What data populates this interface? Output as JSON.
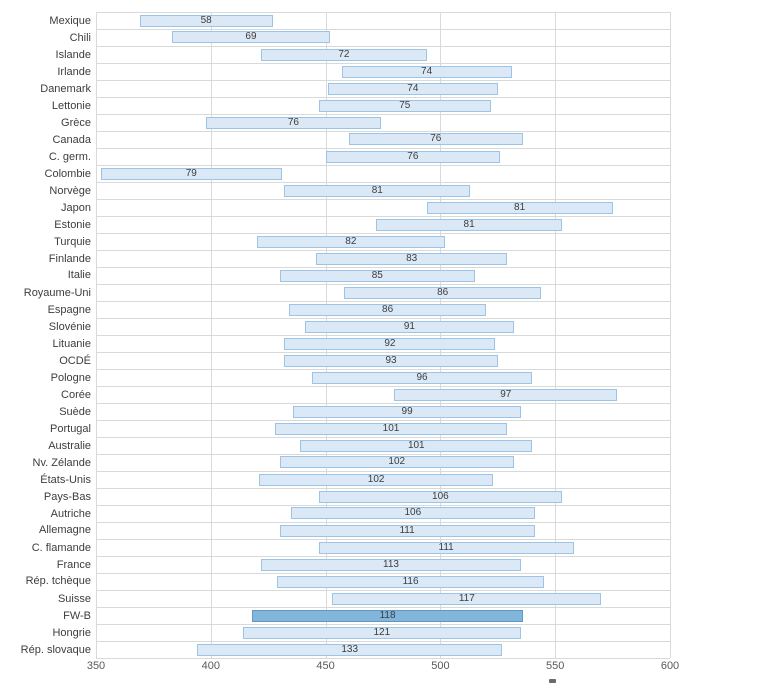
{
  "colors": {
    "bar_fill": "#dbe8f6",
    "bar_border": "#9dc3e6",
    "highlight_fill": "#82b5da",
    "highlight_border": "#5f97c5",
    "gridline": "#d9d9d9",
    "value_text": "#3d3d3d",
    "category_text": "#3d3d3d",
    "tick_text": "#595959"
  },
  "chart_data": {
    "type": "bar",
    "subtype": "floating-range-bars",
    "orientation": "horizontal",
    "title": "",
    "xlabel": "",
    "ylabel": "",
    "xlim": [
      350,
      600
    ],
    "x_ticks": [
      "350",
      "400",
      "450",
      "500",
      "550",
      "600"
    ],
    "grid": true,
    "legend": false,
    "highlighted_category": "FW-B",
    "value_label_meaning": "bar width (end minus start)",
    "bars": [
      {
        "category": "Mexique",
        "start": 369,
        "end": 427,
        "value": "58",
        "highlight": false
      },
      {
        "category": "Chili",
        "start": 383,
        "end": 452,
        "value": "69",
        "highlight": false
      },
      {
        "category": "Islande",
        "start": 422,
        "end": 494,
        "value": "72",
        "highlight": false
      },
      {
        "category": "Irlande",
        "start": 457,
        "end": 531,
        "value": "74",
        "highlight": false
      },
      {
        "category": "Danemark",
        "start": 451,
        "end": 525,
        "value": "74",
        "highlight": false
      },
      {
        "category": "Lettonie",
        "start": 447,
        "end": 522,
        "value": "75",
        "highlight": false
      },
      {
        "category": "Grèce",
        "start": 398,
        "end": 474,
        "value": "76",
        "highlight": false
      },
      {
        "category": "Canada",
        "start": 460,
        "end": 536,
        "value": "76",
        "highlight": false
      },
      {
        "category": "C. germ.",
        "start": 450,
        "end": 526,
        "value": "76",
        "highlight": false
      },
      {
        "category": "Colombie",
        "start": 352,
        "end": 431,
        "value": "79",
        "highlight": false
      },
      {
        "category": "Norvège",
        "start": 432,
        "end": 513,
        "value": "81",
        "highlight": false
      },
      {
        "category": "Japon",
        "start": 494,
        "end": 575,
        "value": "81",
        "highlight": false
      },
      {
        "category": "Estonie",
        "start": 472,
        "end": 553,
        "value": "81",
        "highlight": false
      },
      {
        "category": "Turquie",
        "start": 420,
        "end": 502,
        "value": "82",
        "highlight": false
      },
      {
        "category": "Finlande",
        "start": 446,
        "end": 529,
        "value": "83",
        "highlight": false
      },
      {
        "category": "Italie",
        "start": 430,
        "end": 515,
        "value": "85",
        "highlight": false
      },
      {
        "category": "Royaume-Uni",
        "start": 458,
        "end": 544,
        "value": "86",
        "highlight": false
      },
      {
        "category": "Espagne",
        "start": 434,
        "end": 520,
        "value": "86",
        "highlight": false
      },
      {
        "category": "Slovénie",
        "start": 441,
        "end": 532,
        "value": "91",
        "highlight": false
      },
      {
        "category": "Lituanie",
        "start": 432,
        "end": 524,
        "value": "92",
        "highlight": false
      },
      {
        "category": "OCDÉ",
        "start": 432,
        "end": 525,
        "value": "93",
        "highlight": false
      },
      {
        "category": "Pologne",
        "start": 444,
        "end": 540,
        "value": "96",
        "highlight": false
      },
      {
        "category": "Corée",
        "start": 480,
        "end": 577,
        "value": "97",
        "highlight": false
      },
      {
        "category": "Suède",
        "start": 436,
        "end": 535,
        "value": "99",
        "highlight": false
      },
      {
        "category": "Portugal",
        "start": 428,
        "end": 529,
        "value": "101",
        "highlight": false
      },
      {
        "category": "Australie",
        "start": 439,
        "end": 540,
        "value": "101",
        "highlight": false
      },
      {
        "category": "Nv. Zélande",
        "start": 430,
        "end": 532,
        "value": "102",
        "highlight": false
      },
      {
        "category": "États-Unis",
        "start": 421,
        "end": 523,
        "value": "102",
        "highlight": false
      },
      {
        "category": "Pays-Bas",
        "start": 447,
        "end": 553,
        "value": "106",
        "highlight": false
      },
      {
        "category": "Autriche",
        "start": 435,
        "end": 541,
        "value": "106",
        "highlight": false
      },
      {
        "category": "Allemagne",
        "start": 430,
        "end": 541,
        "value": "111",
        "highlight": false
      },
      {
        "category": "C. flamande",
        "start": 447,
        "end": 558,
        "value": "111",
        "highlight": false
      },
      {
        "category": "France",
        "start": 422,
        "end": 535,
        "value": "113",
        "highlight": false
      },
      {
        "category": "Rép. tchèque",
        "start": 429,
        "end": 545,
        "value": "116",
        "highlight": false
      },
      {
        "category": "Suisse",
        "start": 453,
        "end": 570,
        "value": "117",
        "highlight": false
      },
      {
        "category": "FW-B",
        "start": 418,
        "end": 536,
        "value": "118",
        "highlight": true
      },
      {
        "category": "Hongrie",
        "start": 414,
        "end": 535,
        "value": "121",
        "highlight": false
      },
      {
        "category": "Rép. slovaque",
        "start": 394,
        "end": 527,
        "value": "133",
        "highlight": false
      }
    ]
  }
}
